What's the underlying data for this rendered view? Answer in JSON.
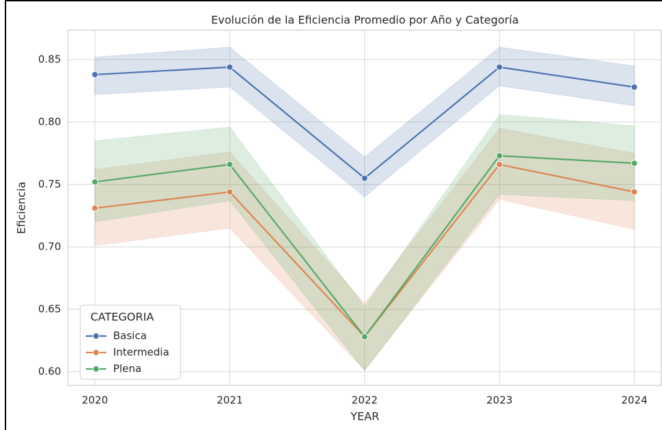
{
  "chart_data": {
    "type": "line",
    "title": "Evolución de la Eficiencia Promedio por Año y Categoría",
    "x_label": "YEAR",
    "y_label": "Eficiencia",
    "x": [
      2020,
      2021,
      2022,
      2023,
      2024
    ],
    "xlim": [
      2019.8,
      2024.2
    ],
    "xticks": [
      2020,
      2021,
      2022,
      2023,
      2024
    ],
    "ylim": [
      0.589,
      0.8736
    ],
    "yticks": [
      {
        "value": 0.6,
        "label": "0.60"
      },
      0.65,
      {
        "value": 0.7,
        "label": "0.70"
      },
      0.75,
      {
        "value": 0.8,
        "label": "0.80"
      },
      0.85
    ],
    "grid": true,
    "legend_title": "CATEGORIA",
    "legend_loc": "lower left",
    "series": [
      {
        "name": "Basica",
        "color": "#4c72b0",
        "values": [
          0.838,
          0.844,
          0.755,
          0.844,
          0.828
        ],
        "lower": [
          0.822,
          0.828,
          0.74,
          0.829,
          0.813
        ],
        "upper": [
          0.852,
          0.86,
          0.772,
          0.86,
          0.845
        ]
      },
      {
        "name": "Intermedia",
        "color": "#dd8452",
        "values": [
          0.731,
          0.744,
          0.628,
          0.766,
          0.744
        ],
        "lower": [
          0.701,
          0.715,
          0.601,
          0.738,
          0.714
        ],
        "upper": [
          0.762,
          0.776,
          0.655,
          0.795,
          0.775
        ]
      },
      {
        "name": "Plena",
        "color": "#55a868",
        "values": [
          0.752,
          0.766,
          0.628,
          0.773,
          0.767
        ],
        "lower": [
          0.72,
          0.737,
          0.601,
          0.742,
          0.737
        ],
        "upper": [
          0.785,
          0.796,
          0.652,
          0.806,
          0.797
        ]
      }
    ]
  }
}
